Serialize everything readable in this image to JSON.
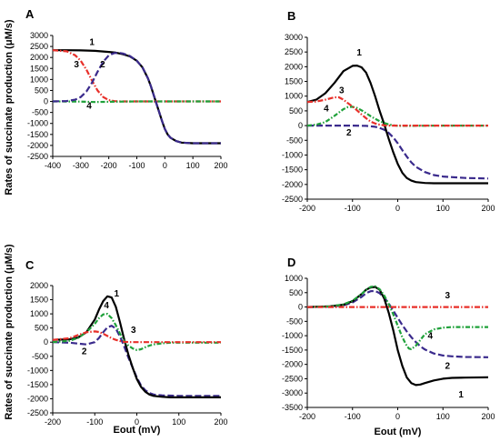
{
  "ylabel_shared": "Rates of succinate production (μM/s)",
  "styles": {
    "1": {
      "color": "#000000",
      "dash": "",
      "width": 2.2
    },
    "2": {
      "color": "#3a2a8c",
      "dash": "7,3",
      "width": 2.2
    },
    "3": {
      "color": "#e8302a",
      "dash": "6,2,1.5,2",
      "width": 2.2
    },
    "4": {
      "color": "#1fa13a",
      "dash": "5,2,1.5,2",
      "width": 2.2
    }
  },
  "chart_data": [
    {
      "type": "line",
      "panel": "A",
      "xlabel": "",
      "xlim": [
        -400,
        200
      ],
      "ylim": [
        -2500,
        3000
      ],
      "xticks": [
        -400,
        -300,
        -200,
        -100,
        0,
        100,
        200
      ],
      "yticks": [
        -2500,
        -2000,
        -1500,
        -1000,
        -500,
        0,
        500,
        1000,
        1500,
        2000,
        2500,
        3000
      ],
      "series": [
        {
          "name": "1",
          "x": [
            -400,
            -350,
            -300,
            -250,
            -200,
            -175,
            -150,
            -125,
            -100,
            -80,
            -60,
            -50,
            -40,
            -30,
            -20,
            -10,
            0,
            10,
            20,
            40,
            60,
            100,
            150,
            200
          ],
          "y": [
            2330,
            2330,
            2320,
            2300,
            2250,
            2220,
            2150,
            2050,
            1850,
            1550,
            1050,
            700,
            300,
            -100,
            -500,
            -900,
            -1250,
            -1500,
            -1650,
            -1800,
            -1870,
            -1900,
            -1900,
            -1900
          ]
        },
        {
          "name": "2",
          "x": [
            -400,
            -350,
            -320,
            -300,
            -280,
            -260,
            -240,
            -220,
            -200,
            -180,
            -160,
            -150,
            -125,
            -100,
            -80,
            -60,
            -50,
            -40,
            -30,
            -20,
            -10,
            0,
            10,
            20,
            40,
            60,
            100,
            150,
            200
          ],
          "y": [
            0,
            20,
            80,
            200,
            450,
            850,
            1350,
            1800,
            2100,
            2200,
            2200,
            2180,
            2070,
            1850,
            1550,
            1050,
            700,
            300,
            -100,
            -500,
            -900,
            -1250,
            -1500,
            -1650,
            -1800,
            -1870,
            -1900,
            -1900,
            -1900
          ]
        },
        {
          "name": "3",
          "x": [
            -400,
            -350,
            -320,
            -300,
            -280,
            -260,
            -240,
            -220,
            -200,
            -180,
            -160,
            -100,
            0,
            100,
            200
          ],
          "y": [
            2330,
            2280,
            2100,
            1850,
            1450,
            950,
            500,
            200,
            60,
            15,
            0,
            0,
            0,
            0,
            0
          ]
        },
        {
          "name": "4",
          "x": [
            -400,
            -300,
            -250,
            -200,
            -150,
            -100,
            0,
            100,
            200
          ],
          "y": [
            0,
            -5,
            -25,
            -15,
            -5,
            0,
            0,
            0,
            0
          ]
        }
      ],
      "curve_labels": [
        {
          "text": "1",
          "x": -260,
          "y": 2560
        },
        {
          "text": "2",
          "x": -222,
          "y": 1550
        },
        {
          "text": "3",
          "x": -315,
          "y": 1550
        },
        {
          "text": "4",
          "x": -270,
          "y": -330
        }
      ]
    },
    {
      "type": "line",
      "panel": "B",
      "xlabel": "",
      "xlim": [
        -200,
        200
      ],
      "ylim": [
        -2500,
        3000
      ],
      "xticks": [
        -200,
        -100,
        0,
        100,
        200
      ],
      "yticks": [
        -2500,
        -2000,
        -1500,
        -1000,
        -500,
        0,
        500,
        1000,
        1500,
        2000,
        2500,
        3000
      ],
      "series": [
        {
          "name": "1",
          "x": [
            -200,
            -180,
            -160,
            -140,
            -120,
            -100,
            -90,
            -80,
            -70,
            -60,
            -50,
            -40,
            -30,
            -20,
            -10,
            0,
            10,
            20,
            30,
            40,
            60,
            80,
            100,
            150,
            200
          ],
          "y": [
            800,
            880,
            1100,
            1450,
            1850,
            2030,
            2040,
            1980,
            1800,
            1450,
            1000,
            500,
            50,
            -450,
            -900,
            -1300,
            -1600,
            -1780,
            -1870,
            -1920,
            -1950,
            -1960,
            -1960,
            -1960,
            -1960
          ]
        },
        {
          "name": "2",
          "x": [
            -200,
            -150,
            -100,
            -70,
            -50,
            -40,
            -30,
            -20,
            -10,
            0,
            10,
            20,
            30,
            40,
            60,
            80,
            100,
            150,
            200
          ],
          "y": [
            0,
            0,
            0,
            -10,
            -40,
            -80,
            -140,
            -250,
            -400,
            -600,
            -830,
            -1050,
            -1250,
            -1400,
            -1580,
            -1680,
            -1730,
            -1780,
            -1800
          ]
        },
        {
          "name": "3",
          "x": [
            -200,
            -180,
            -160,
            -150,
            -140,
            -130,
            -120,
            -110,
            -100,
            -90,
            -80,
            -70,
            -60,
            -50,
            -40,
            -30,
            -20,
            0,
            100,
            200
          ],
          "y": [
            800,
            820,
            880,
            920,
            960,
            960,
            880,
            760,
            650,
            520,
            380,
            250,
            140,
            70,
            30,
            10,
            0,
            0,
            0,
            0
          ]
        },
        {
          "name": "4",
          "x": [
            -200,
            -180,
            -160,
            -140,
            -120,
            -110,
            -100,
            -90,
            -80,
            -70,
            -60,
            -50,
            -40,
            -30,
            -20,
            -10,
            0,
            10,
            20,
            40,
            100,
            200
          ],
          "y": [
            0,
            30,
            120,
            330,
            560,
            630,
            640,
            600,
            520,
            420,
            320,
            230,
            150,
            90,
            40,
            10,
            -5,
            -10,
            -10,
            -5,
            0,
            0
          ]
        }
      ],
      "curve_labels": [
        {
          "text": "1",
          "x": -85,
          "y": 2380
        },
        {
          "text": "2",
          "x": -108,
          "y": -330
        },
        {
          "text": "3",
          "x": -124,
          "y": 1100
        },
        {
          "text": "4",
          "x": -158,
          "y": 480
        }
      ]
    },
    {
      "type": "line",
      "panel": "C",
      "xlabel": "Eout   (mV)",
      "xlim": [
        -200,
        200
      ],
      "ylim": [
        -2500,
        2000
      ],
      "xticks": [
        -200,
        -100,
        0,
        100,
        200
      ],
      "yticks": [
        -2500,
        -2000,
        -1500,
        -1000,
        -500,
        0,
        500,
        1000,
        1500,
        2000
      ],
      "series": [
        {
          "name": "1",
          "x": [
            -200,
            -160,
            -140,
            -120,
            -100,
            -90,
            -80,
            -70,
            -60,
            -50,
            -40,
            -30,
            -20,
            -10,
            0,
            10,
            20,
            30,
            40,
            60,
            80,
            100,
            150,
            200
          ],
          "y": [
            80,
            100,
            160,
            350,
            800,
            1150,
            1450,
            1620,
            1580,
            1250,
            700,
            100,
            -450,
            -900,
            -1300,
            -1580,
            -1750,
            -1850,
            -1900,
            -1930,
            -1950,
            -1950,
            -1950,
            -1950
          ]
        },
        {
          "name": "2",
          "x": [
            -200,
            -160,
            -140,
            -120,
            -100,
            -90,
            -80,
            -70,
            -60,
            -50,
            -40,
            -30,
            -20,
            -10,
            0,
            10,
            20,
            30,
            40,
            60,
            80,
            100,
            150,
            200
          ],
          "y": [
            0,
            -20,
            -50,
            -80,
            0,
            150,
            350,
            520,
            580,
            480,
            200,
            -150,
            -550,
            -900,
            -1250,
            -1530,
            -1700,
            -1800,
            -1850,
            -1880,
            -1890,
            -1900,
            -1900,
            -1900
          ]
        },
        {
          "name": "3",
          "x": [
            -200,
            -160,
            -140,
            -120,
            -100,
            -90,
            -80,
            -70,
            -60,
            -50,
            -40,
            -30,
            -20,
            -10,
            0,
            20,
            50,
            100,
            200
          ],
          "y": [
            80,
            140,
            250,
            350,
            380,
            360,
            300,
            220,
            140,
            80,
            40,
            15,
            5,
            0,
            0,
            0,
            0,
            0,
            0
          ]
        },
        {
          "name": "4",
          "x": [
            -200,
            -160,
            -140,
            -120,
            -100,
            -90,
            -80,
            -70,
            -60,
            -50,
            -40,
            -30,
            -20,
            -10,
            0,
            10,
            20,
            30,
            40,
            60,
            80,
            100,
            150,
            200
          ],
          "y": [
            0,
            50,
            150,
            350,
            650,
            850,
            980,
            1000,
            850,
            600,
            300,
            60,
            -120,
            -220,
            -280,
            -250,
            -180,
            -120,
            -80,
            -40,
            -20,
            -20,
            -20,
            -20
          ]
        }
      ],
      "curve_labels": [
        {
          "text": "1",
          "x": -48,
          "y": 1620
        },
        {
          "text": "2",
          "x": -125,
          "y": -420
        },
        {
          "text": "3",
          "x": -8,
          "y": 330
        },
        {
          "text": "4",
          "x": -72,
          "y": 1200
        }
      ]
    },
    {
      "type": "line",
      "panel": "D",
      "xlabel": "Eout   (mV)",
      "xlim": [
        -200,
        200
      ],
      "ylim": [
        -3500,
        1000
      ],
      "xticks": [
        -200,
        -100,
        0,
        100,
        200
      ],
      "yticks": [
        -3500,
        -3000,
        -2500,
        -2000,
        -1500,
        -1000,
        -500,
        0,
        500,
        1000
      ],
      "series": [
        {
          "name": "1",
          "x": [
            -200,
            -150,
            -120,
            -100,
            -80,
            -70,
            -60,
            -50,
            -40,
            -30,
            -20,
            -10,
            0,
            10,
            20,
            30,
            40,
            50,
            60,
            80,
            100,
            120,
            150,
            200
          ],
          "y": [
            0,
            20,
            80,
            200,
            450,
            600,
            680,
            700,
            600,
            300,
            -200,
            -800,
            -1500,
            -2050,
            -2450,
            -2650,
            -2720,
            -2700,
            -2650,
            -2560,
            -2500,
            -2470,
            -2460,
            -2450
          ]
        },
        {
          "name": "2",
          "x": [
            -200,
            -150,
            -120,
            -100,
            -80,
            -70,
            -60,
            -50,
            -40,
            -30,
            -20,
            -10,
            0,
            10,
            20,
            30,
            40,
            50,
            60,
            80,
            100,
            120,
            150,
            200
          ],
          "y": [
            0,
            10,
            60,
            160,
            350,
            480,
            550,
            560,
            480,
            330,
            120,
            -120,
            -380,
            -630,
            -850,
            -1050,
            -1220,
            -1370,
            -1480,
            -1620,
            -1690,
            -1720,
            -1740,
            -1750
          ]
        },
        {
          "name": "3",
          "x": [
            -200,
            -150,
            -100,
            -50,
            0,
            50,
            100,
            150,
            200
          ],
          "y": [
            0,
            0,
            0,
            0,
            0,
            0,
            0,
            0,
            0
          ]
        },
        {
          "name": "4",
          "x": [
            -200,
            -150,
            -120,
            -100,
            -80,
            -70,
            -60,
            -50,
            -40,
            -30,
            -20,
            -10,
            0,
            10,
            20,
            25,
            30,
            40,
            50,
            60,
            80,
            100,
            120,
            150,
            200
          ],
          "y": [
            0,
            20,
            90,
            220,
            450,
            600,
            700,
            720,
            620,
            400,
            100,
            -250,
            -650,
            -1050,
            -1350,
            -1450,
            -1470,
            -1350,
            -1150,
            -950,
            -780,
            -720,
            -700,
            -700,
            -700
          ]
        }
      ],
      "curve_labels": [
        {
          "text": "1",
          "x": 140,
          "y": -3150
        },
        {
          "text": "2",
          "x": 110,
          "y": -2150
        },
        {
          "text": "3",
          "x": 110,
          "y": 300
        },
        {
          "text": "4",
          "x": 72,
          "y": -1100
        }
      ]
    }
  ],
  "panel_layout_note": ""
}
